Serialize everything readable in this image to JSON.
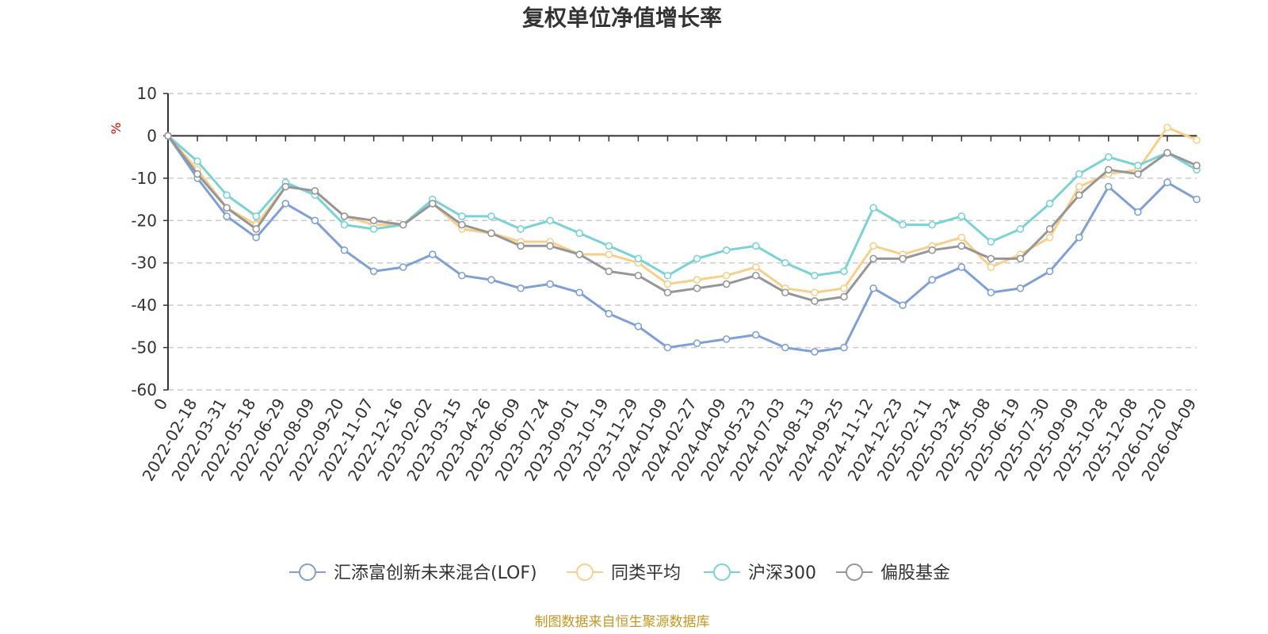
{
  "chart_data": {
    "type": "line",
    "title": "复权单位净值增长率",
    "ylabel": "%",
    "ylim": [
      -60,
      10
    ],
    "yticks": [
      10,
      0,
      -10,
      -20,
      -30,
      -40,
      -50,
      -60
    ],
    "grid": true,
    "legend_position": "bottom",
    "x": [
      "0",
      "2022-02-18",
      "2022-03-31",
      "2022-05-18",
      "2022-06-29",
      "2022-08-09",
      "2022-09-20",
      "2022-11-07",
      "2022-12-16",
      "2023-02-02",
      "2023-03-15",
      "2023-04-26",
      "2023-06-09",
      "2023-07-24",
      "2023-09-01",
      "2023-10-19",
      "2023-11-29",
      "2024-01-09",
      "2024-02-27",
      "2024-04-09",
      "2024-05-23",
      "2024-07-03",
      "2024-08-13",
      "2024-09-25",
      "2024-11-12",
      "2024-12-23",
      "2025-02-11",
      "2025-03-24",
      "2025-05-08",
      "2025-06-19",
      "2025-07-30",
      "2025-09-09",
      "2025-10-28",
      "2025-12-08",
      "2026-01-20",
      "2026-04-09"
    ],
    "series": [
      {
        "name": "汇添富创新未来混合(LOF)",
        "color": "#7fa0d6",
        "values": [
          0,
          -10,
          -19,
          -24,
          -16,
          -20,
          -27,
          -32,
          -31,
          -28,
          -33,
          -34,
          -36,
          -35,
          -37,
          -42,
          -45,
          -50,
          -49,
          -48,
          -47,
          -50,
          -51,
          -50,
          -36,
          -40,
          -34,
          -31,
          -37,
          -36,
          -32,
          -24,
          -12,
          -18,
          -11,
          -15
        ]
      },
      {
        "name": "同类平均",
        "color": "#f8cf8a",
        "values": [
          0,
          -8,
          -17,
          -21,
          -12,
          -13,
          -19,
          -21,
          -21,
          -16,
          -22,
          -23,
          -25,
          -25,
          -28,
          -28,
          -30,
          -35,
          -34,
          -33,
          -31,
          -36,
          -37,
          -36,
          -26,
          -28,
          -26,
          -24,
          -31,
          -28,
          -24,
          -12,
          -9,
          -8,
          2,
          -1
        ]
      },
      {
        "name": "沪深300",
        "color": "#7ad2d6",
        "values": [
          0,
          -6,
          -14,
          -19,
          -11,
          -14,
          -21,
          -22,
          -21,
          -15,
          -19,
          -19,
          -22,
          -20,
          -23,
          -26,
          -29,
          -33,
          -29,
          -27,
          -26,
          -30,
          -33,
          -32,
          -17,
          -21,
          -21,
          -19,
          -25,
          -22,
          -16,
          -9,
          -5,
          -7,
          -4,
          -8
        ]
      },
      {
        "name": "偏股基金",
        "color": "#969696",
        "values": [
          0,
          -9,
          -17,
          -22,
          -12,
          -13,
          -19,
          -20,
          -21,
          -16,
          -21,
          -23,
          -26,
          -26,
          -28,
          -32,
          -33,
          -37,
          -36,
          -35,
          -33,
          -37,
          -39,
          -38,
          -29,
          -29,
          -27,
          -26,
          -29,
          -29,
          -22,
          -14,
          -8,
          -9,
          -4,
          -7
        ]
      }
    ]
  },
  "source": "制图数据来自恒生聚源数据库"
}
